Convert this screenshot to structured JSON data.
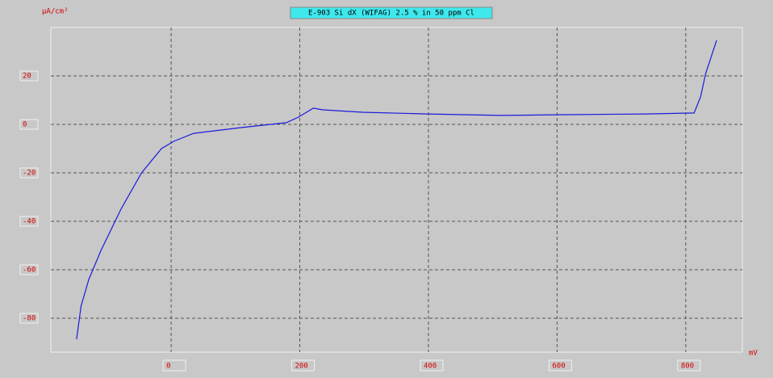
{
  "chart_data": {
    "type": "line",
    "title": "E-903 Si dX (WIFAG) 2.5 % in 50 ppm Cl",
    "y_label": "µA/cm²",
    "x_label": "mV",
    "xlim": [
      -187,
      888
    ],
    "ylim": [
      -94,
      40
    ],
    "xticks": [
      0,
      200,
      400,
      600,
      800
    ],
    "yticks": [
      20,
      0,
      -20,
      -40,
      -60,
      -80
    ],
    "grid": true,
    "series": [
      {
        "name": "E-903",
        "color": "#1a1adc",
        "x": [
          -147,
          -140,
          -128,
          -109,
          -78,
          -46,
          -15,
          4,
          35,
          110,
          179,
          198,
          221,
          236,
          298,
          399,
          512,
          612,
          737,
          813,
          823,
          831,
          848
        ],
        "values": [
          -88.7,
          -75,
          -64,
          -52,
          -35,
          -20,
          -10,
          -7,
          -3.7,
          -1.3,
          0.7,
          3,
          6.7,
          6,
          5,
          4.3,
          3.7,
          4,
          4.3,
          4.7,
          11.3,
          21,
          34.7
        ]
      }
    ]
  }
}
